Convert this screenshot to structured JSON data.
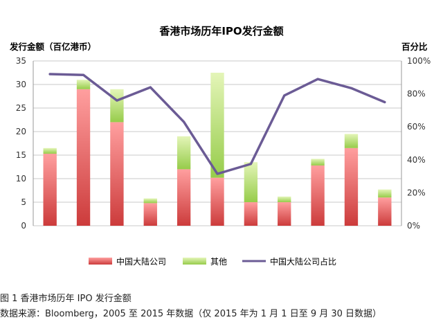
{
  "chart_data": {
    "type": "bar",
    "title": "香港市场历年IPO发行金额",
    "ylabel": "发行金额（百亿港币）",
    "y2label": "百分比",
    "categories": [
      "",
      "",
      "",
      "",
      "",
      "",
      "",
      "",
      "",
      "",
      ""
    ],
    "ylim": [
      0,
      35
    ],
    "y2lim": [
      0,
      1
    ],
    "yticks": [
      "0",
      "5",
      "10",
      "15",
      "20",
      "25",
      "30",
      "35"
    ],
    "y2ticks": [
      "0%",
      "20%",
      "40%",
      "60%",
      "80%",
      "100%"
    ],
    "grid": true,
    "legend_position": "bottom",
    "stacked": true,
    "series": [
      {
        "name": "中国大陆公司",
        "kind": "bar",
        "color": "#e45f5f",
        "values": [
          15.3,
          29.0,
          22.0,
          4.8,
          12.0,
          10.2,
          5.0,
          5.0,
          12.8,
          16.5,
          6.0
        ]
      },
      {
        "name": "其他",
        "kind": "bar",
        "color": "#a8d65e",
        "values": [
          1.2,
          2.0,
          7.0,
          1.0,
          7.0,
          22.3,
          8.5,
          1.2,
          1.4,
          3.0,
          1.7
        ]
      },
      {
        "name": "中国大陆公司占比",
        "kind": "line",
        "axis": "right",
        "color": "#6b5b95",
        "values": [
          0.92,
          0.915,
          0.76,
          0.84,
          0.63,
          0.315,
          0.375,
          0.79,
          0.89,
          0.835,
          0.75
        ]
      }
    ]
  },
  "captions": {
    "figure": "图 1 香港市场历年 IPO 发行金额",
    "source": "数据来源：Bloomberg，2005 至 2015 年数据（仅 2015 年为 1 月 1 日至 9 月 30 日数据）"
  }
}
